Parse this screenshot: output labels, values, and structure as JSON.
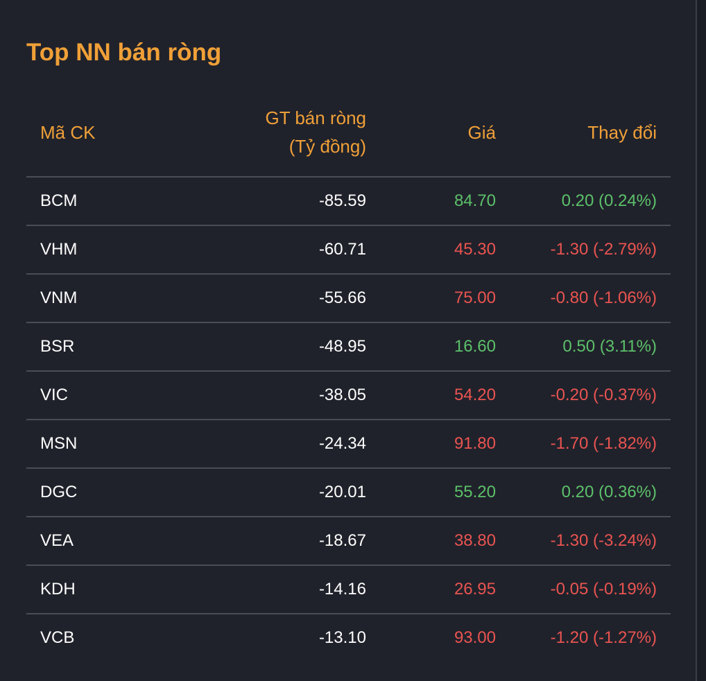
{
  "title": "Top NN bán ròng",
  "colors": {
    "accent": "#f0a038",
    "up": "#5cc16a",
    "down": "#ea5451",
    "background": "#20222b"
  },
  "table": {
    "headers": {
      "code": "Mã CK",
      "value_line1": "GT bán ròng",
      "value_line2": "(Tỷ đồng)",
      "price": "Giá",
      "change": "Thay đổi"
    },
    "rows": [
      {
        "code": "BCM",
        "value": "-85.59",
        "price": "84.70",
        "change": "0.20 (0.24%)",
        "direction": "up"
      },
      {
        "code": "VHM",
        "value": "-60.71",
        "price": "45.30",
        "change": "-1.30 (-2.79%)",
        "direction": "down"
      },
      {
        "code": "VNM",
        "value": "-55.66",
        "price": "75.00",
        "change": "-0.80 (-1.06%)",
        "direction": "down"
      },
      {
        "code": "BSR",
        "value": "-48.95",
        "price": "16.60",
        "change": "0.50 (3.11%)",
        "direction": "up"
      },
      {
        "code": "VIC",
        "value": "-38.05",
        "price": "54.20",
        "change": "-0.20 (-0.37%)",
        "direction": "down"
      },
      {
        "code": "MSN",
        "value": "-24.34",
        "price": "91.80",
        "change": "-1.70 (-1.82%)",
        "direction": "down"
      },
      {
        "code": "DGC",
        "value": "-20.01",
        "price": "55.20",
        "change": "0.20 (0.36%)",
        "direction": "up"
      },
      {
        "code": "VEA",
        "value": "-18.67",
        "price": "38.80",
        "change": "-1.30 (-3.24%)",
        "direction": "down"
      },
      {
        "code": "KDH",
        "value": "-14.16",
        "price": "26.95",
        "change": "-0.05 (-0.19%)",
        "direction": "down"
      },
      {
        "code": "VCB",
        "value": "-13.10",
        "price": "93.00",
        "change": "-1.20 (-1.27%)",
        "direction": "down"
      }
    ]
  }
}
